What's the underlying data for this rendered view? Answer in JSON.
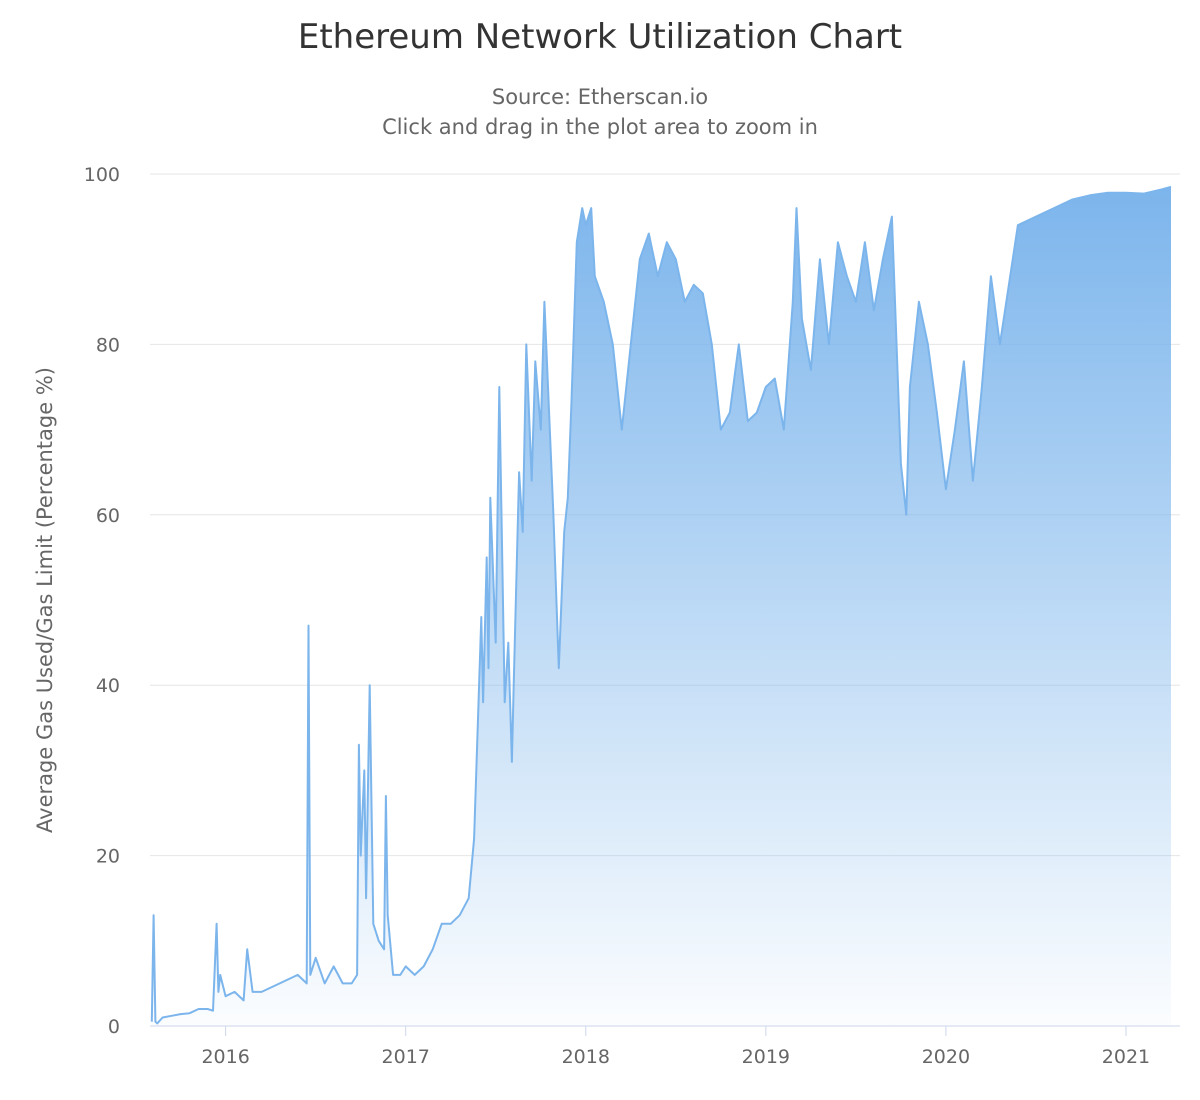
{
  "chart_data": {
    "type": "area",
    "title": "Ethereum Network Utilization Chart",
    "subtitle_lines": [
      "Source: Etherscan.io",
      "Click and drag in the plot area to zoom in"
    ],
    "xlabel": "",
    "ylabel": "Average Gas Used/Gas Limit (Percentage %)",
    "xlim": [
      2015.58,
      2021.3
    ],
    "ylim": [
      0,
      100
    ],
    "x_ticks": [
      2016,
      2017,
      2018,
      2019,
      2020,
      2021
    ],
    "x_tick_labels": [
      "2016",
      "2017",
      "2018",
      "2019",
      "2020",
      "2021"
    ],
    "y_ticks": [
      0,
      20,
      40,
      60,
      80,
      100
    ],
    "y_tick_labels": [
      "0",
      "20",
      "40",
      "60",
      "80",
      "100"
    ],
    "grid": true,
    "legend": "none",
    "line_color": "#7cb5ec",
    "series": [
      {
        "x": [
          2015.59,
          2015.6,
          2015.61,
          2015.62,
          2015.65,
          2015.7,
          2015.75,
          2015.8,
          2015.85,
          2015.9,
          2015.93,
          2015.95,
          2015.96,
          2015.97,
          2016.0,
          2016.05,
          2016.1,
          2016.12,
          2016.15,
          2016.2,
          2016.3,
          2016.4,
          2016.45,
          2016.46,
          2016.47,
          2016.5,
          2016.55,
          2016.6,
          2016.65,
          2016.7,
          2016.73,
          2016.74,
          2016.75,
          2016.77,
          2016.78,
          2016.8,
          2016.82,
          2016.85,
          2016.88,
          2016.89,
          2016.9,
          2016.93,
          2016.97,
          2017.0,
          2017.05,
          2017.1,
          2017.15,
          2017.2,
          2017.25,
          2017.3,
          2017.35,
          2017.38,
          2017.4,
          2017.42,
          2017.43,
          2017.45,
          2017.46,
          2017.47,
          2017.5,
          2017.52,
          2017.55,
          2017.57,
          2017.59,
          2017.6,
          2017.63,
          2017.65,
          2017.67,
          2017.7,
          2017.72,
          2017.75,
          2017.77,
          2017.8,
          2017.82,
          2017.85,
          2017.88,
          2017.9,
          2017.92,
          2017.95,
          2017.98,
          2018.0,
          2018.03,
          2018.05,
          2018.1,
          2018.15,
          2018.2,
          2018.25,
          2018.3,
          2018.35,
          2018.4,
          2018.45,
          2018.5,
          2018.55,
          2018.6,
          2018.65,
          2018.7,
          2018.75,
          2018.8,
          2018.85,
          2018.9,
          2018.95,
          2019.0,
          2019.05,
          2019.1,
          2019.15,
          2019.17,
          2019.2,
          2019.25,
          2019.3,
          2019.35,
          2019.4,
          2019.45,
          2019.5,
          2019.55,
          2019.6,
          2019.65,
          2019.7,
          2019.75,
          2019.78,
          2019.8,
          2019.85,
          2019.9,
          2019.95,
          2020.0,
          2020.05,
          2020.1,
          2020.15,
          2020.2,
          2020.25,
          2020.3,
          2020.35,
          2020.4,
          2020.5,
          2020.6,
          2020.7,
          2020.8,
          2020.9,
          2021.0,
          2021.1,
          2021.2,
          2021.25
        ],
        "y": [
          0.5,
          13,
          0.5,
          0.3,
          1.0,
          1.2,
          1.4,
          1.5,
          2.0,
          2.0,
          1.8,
          12,
          4,
          6,
          3.5,
          4,
          3,
          9,
          4,
          4,
          5,
          6,
          5,
          47,
          6,
          8,
          5,
          7,
          5,
          5,
          6,
          33,
          20,
          30,
          15,
          40,
          12,
          10,
          9,
          27,
          13,
          6,
          6,
          7,
          6,
          7,
          9,
          12,
          12,
          13,
          15,
          22,
          35,
          48,
          38,
          55,
          42,
          62,
          45,
          75,
          38,
          45,
          31,
          40,
          65,
          58,
          80,
          64,
          78,
          70,
          85,
          70,
          60,
          42,
          58,
          62,
          73,
          92,
          96,
          94,
          96,
          88,
          85,
          80,
          70,
          80,
          90,
          93,
          88,
          92,
          90,
          85,
          87,
          86,
          80,
          70,
          72,
          80,
          71,
          72,
          75,
          76,
          70,
          85,
          96,
          83,
          77,
          90,
          80,
          92,
          88,
          85,
          92,
          84,
          90,
          95,
          66,
          60,
          75,
          85,
          80,
          72,
          63,
          70,
          78,
          64,
          75,
          88,
          80,
          87,
          94,
          95,
          96,
          97,
          97.5,
          97.8,
          97.8,
          97.7,
          98.2,
          98.5
        ]
      }
    ]
  }
}
